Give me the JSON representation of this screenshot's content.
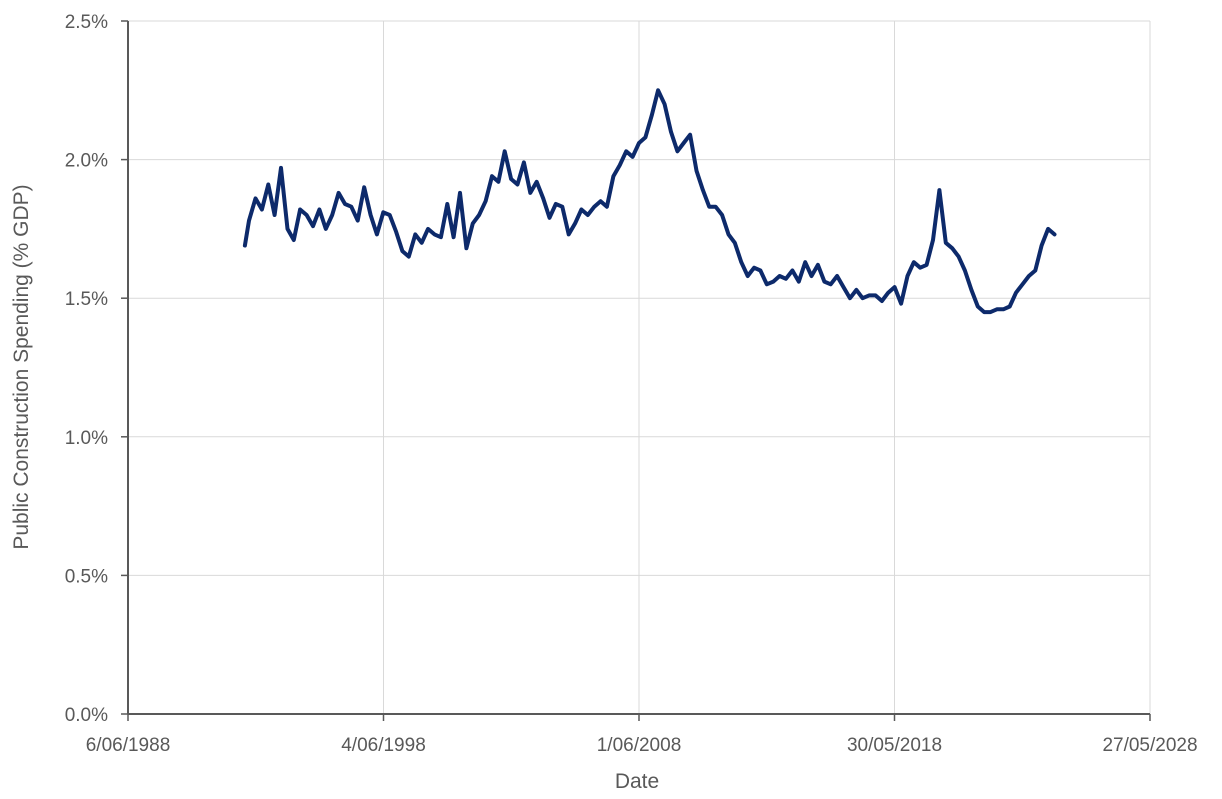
{
  "chart_data": {
    "type": "line",
    "title": "",
    "xlabel": "Date",
    "ylabel": "Public Construction Spending (% GDP)",
    "x_tick_labels": [
      "6/06/1988",
      "4/06/1998",
      "1/06/2008",
      "30/05/2018",
      "27/05/2028"
    ],
    "x_ticks": [
      "1988-06-06",
      "1998-06-04",
      "2008-06-01",
      "2018-05-30",
      "2028-05-27"
    ],
    "xlim": [
      "1988-06-06",
      "2028-05-27"
    ],
    "y_tick_labels": [
      "0.0%",
      "0.5%",
      "1.0%",
      "1.5%",
      "2.0%",
      "2.5%"
    ],
    "y_ticks": [
      0.0,
      0.5,
      1.0,
      1.5,
      2.0,
      2.5
    ],
    "ylim": [
      0.0,
      2.5
    ],
    "y_unit": "%",
    "grid": true,
    "legend": "none",
    "colors": {
      "line": "#0d2a6b",
      "grid": "#d9d9d9",
      "axis": "#595959",
      "text": "#595959"
    },
    "series": [
      {
        "x": [
          "1993-01-01",
          "1993-03-01",
          "1993-06-01",
          "1993-09-01",
          "1993-12-01",
          "1994-03-01",
          "1994-06-01",
          "1994-09-01",
          "1994-12-01",
          "1995-03-01",
          "1995-06-01",
          "1995-09-01",
          "1995-12-01",
          "1996-03-01",
          "1996-06-01",
          "1996-09-01",
          "1996-12-01",
          "1997-03-01",
          "1997-06-01",
          "1997-09-01",
          "1997-12-01",
          "1998-03-01",
          "1998-06-01",
          "1998-09-01",
          "1998-12-01",
          "1999-03-01",
          "1999-06-01",
          "1999-09-01",
          "1999-12-01",
          "2000-03-01",
          "2000-06-01",
          "2000-09-01",
          "2000-12-01",
          "2001-03-01",
          "2001-06-01",
          "2001-09-01",
          "2001-12-01",
          "2002-03-01",
          "2002-06-01",
          "2002-09-01",
          "2002-12-01",
          "2003-03-01",
          "2003-06-01",
          "2003-09-01",
          "2003-12-01",
          "2004-03-01",
          "2004-06-01",
          "2004-09-01",
          "2004-12-01",
          "2005-03-01",
          "2005-06-01",
          "2005-09-01",
          "2005-12-01",
          "2006-03-01",
          "2006-06-01",
          "2006-09-01",
          "2006-12-01",
          "2007-03-01",
          "2007-06-01",
          "2007-09-01",
          "2007-12-01",
          "2008-03-01",
          "2008-06-01",
          "2008-09-01",
          "2008-12-01",
          "2009-03-01",
          "2009-06-01",
          "2009-09-01",
          "2009-12-01",
          "2010-03-01",
          "2010-06-01",
          "2010-09-01",
          "2010-12-01",
          "2011-03-01",
          "2011-06-01",
          "2011-09-01",
          "2011-12-01",
          "2012-03-01",
          "2012-06-01",
          "2012-09-01",
          "2012-12-01",
          "2013-03-01",
          "2013-06-01",
          "2013-09-01",
          "2013-12-01",
          "2014-03-01",
          "2014-06-01",
          "2014-09-01",
          "2014-12-01",
          "2015-03-01",
          "2015-06-01",
          "2015-09-01",
          "2015-12-01",
          "2016-03-01",
          "2016-06-01",
          "2016-09-01",
          "2016-12-01",
          "2017-03-01",
          "2017-06-01",
          "2017-09-01",
          "2017-12-01",
          "2018-03-01",
          "2018-06-01",
          "2018-09-01",
          "2018-12-01",
          "2019-03-01",
          "2019-06-01",
          "2019-09-01",
          "2019-12-01",
          "2020-03-01",
          "2020-06-01",
          "2020-09-01",
          "2020-12-01",
          "2021-03-01",
          "2021-06-01",
          "2021-09-01",
          "2021-12-01",
          "2022-03-01",
          "2022-06-01",
          "2022-09-01",
          "2022-12-01",
          "2023-03-01",
          "2023-06-01",
          "2023-09-01",
          "2023-12-01",
          "2024-03-01",
          "2024-06-01",
          "2024-09-01"
        ],
        "values": [
          1.69,
          1.78,
          1.86,
          1.82,
          1.91,
          1.8,
          1.97,
          1.75,
          1.71,
          1.82,
          1.8,
          1.76,
          1.82,
          1.75,
          1.8,
          1.88,
          1.84,
          1.83,
          1.78,
          1.9,
          1.8,
          1.73,
          1.81,
          1.8,
          1.74,
          1.67,
          1.65,
          1.73,
          1.7,
          1.75,
          1.73,
          1.72,
          1.84,
          1.72,
          1.88,
          1.68,
          1.77,
          1.8,
          1.85,
          1.94,
          1.92,
          2.03,
          1.93,
          1.91,
          1.99,
          1.88,
          1.92,
          1.86,
          1.79,
          1.84,
          1.83,
          1.73,
          1.77,
          1.82,
          1.8,
          1.83,
          1.85,
          1.83,
          1.94,
          1.98,
          2.03,
          2.01,
          2.06,
          2.08,
          2.16,
          2.25,
          2.2,
          2.1,
          2.03,
          2.06,
          2.09,
          1.96,
          1.89,
          1.83,
          1.83,
          1.8,
          1.73,
          1.7,
          1.63,
          1.58,
          1.61,
          1.6,
          1.55,
          1.56,
          1.58,
          1.57,
          1.6,
          1.56,
          1.63,
          1.58,
          1.62,
          1.56,
          1.55,
          1.58,
          1.54,
          1.5,
          1.53,
          1.5,
          1.51,
          1.51,
          1.49,
          1.52,
          1.54,
          1.48,
          1.58,
          1.63,
          1.61,
          1.62,
          1.71,
          1.89,
          1.7,
          1.68,
          1.65,
          1.6,
          1.53,
          1.47,
          1.45,
          1.45,
          1.46,
          1.46,
          1.47,
          1.52,
          1.55,
          1.58,
          1.6,
          1.69,
          1.75,
          1.73
        ]
      }
    ]
  }
}
